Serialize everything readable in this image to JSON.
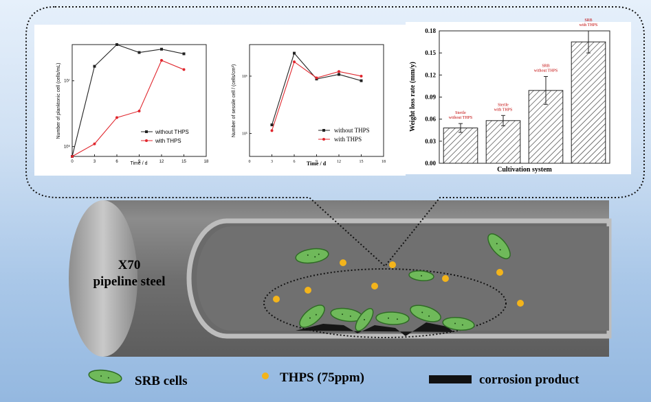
{
  "pipe": {
    "label_line1": "X70",
    "label_line2": "pipeline steel"
  },
  "legend": {
    "srb": "SRB cells",
    "thps": "THPS (75ppm)",
    "corrosion": "corrosion product"
  },
  "colors": {
    "srb_fill": "#6fb95a",
    "srb_stroke": "#2f6b25",
    "thps": "#f3b41b",
    "black_line": "#111111",
    "red_line": "#e0262d",
    "annotation_red": "#c00000"
  },
  "chart_data": [
    {
      "type": "line",
      "xlabel": "Time / d",
      "ylabel": "Number of planktonic cell (cells/mL)",
      "x_ticks": [
        "0",
        "3",
        "6",
        "9",
        "12",
        "15",
        "18"
      ],
      "y_ticks": [
        "10⁶",
        "10⁷"
      ],
      "xlim": [
        0,
        18
      ],
      "ylog_range": [
        5.85,
        7.55
      ],
      "legend_position": "lower-right",
      "series": [
        {
          "name": "without THPS",
          "color": "#222222",
          "marker": "square",
          "x": [
            0,
            3,
            6,
            9,
            12,
            15
          ],
          "y": [
            5.85,
            7.22,
            7.55,
            7.43,
            7.48,
            7.41
          ]
        },
        {
          "name": "with THPS",
          "color": "#e0262d",
          "marker": "circle",
          "x": [
            0,
            3,
            6,
            9,
            12,
            15
          ],
          "y": [
            5.85,
            6.04,
            6.44,
            6.54,
            7.31,
            7.17
          ]
        }
      ]
    },
    {
      "type": "line",
      "xlabel": "Time / d",
      "ylabel": "Number of sessile cell / (cells/cm²)",
      "x_ticks": [
        "0",
        "3",
        "6",
        "9",
        "12",
        "15",
        "18"
      ],
      "y_ticks": [
        "10⁵",
        "10⁶"
      ],
      "xlim": [
        0,
        18
      ],
      "ylog_range": [
        4.6,
        6.55
      ],
      "legend_position": "lower-right",
      "series": [
        {
          "name": "without THPS",
          "color": "#222222",
          "marker": "square",
          "x": [
            3,
            6,
            9,
            12,
            15
          ],
          "y": [
            5.15,
            6.4,
            5.95,
            6.03,
            5.92
          ]
        },
        {
          "name": "with THPS",
          "color": "#e0262d",
          "marker": "circle",
          "x": [
            3,
            6,
            9,
            12,
            15
          ],
          "y": [
            5.05,
            6.25,
            5.97,
            6.08,
            6.0
          ]
        }
      ]
    },
    {
      "type": "bar",
      "xlabel": "Cultivation system",
      "ylabel": "Weight loss rate (mm/y)",
      "ylim": [
        0,
        0.18
      ],
      "y_ticks": [
        "0.00",
        "0.03",
        "0.06",
        "0.09",
        "0.12",
        "0.15",
        "0.18"
      ],
      "categories": [
        [
          "Sterile",
          "without THPS"
        ],
        [
          "Sterile",
          "with THPS"
        ],
        [
          "SRB",
          "without THPS"
        ],
        [
          "SRB",
          "with THPS"
        ]
      ],
      "values": [
        0.048,
        0.058,
        0.099,
        0.165
      ],
      "errors": [
        0.006,
        0.007,
        0.019,
        0.015
      ],
      "bar_pattern": "diagonal-hatch"
    }
  ]
}
